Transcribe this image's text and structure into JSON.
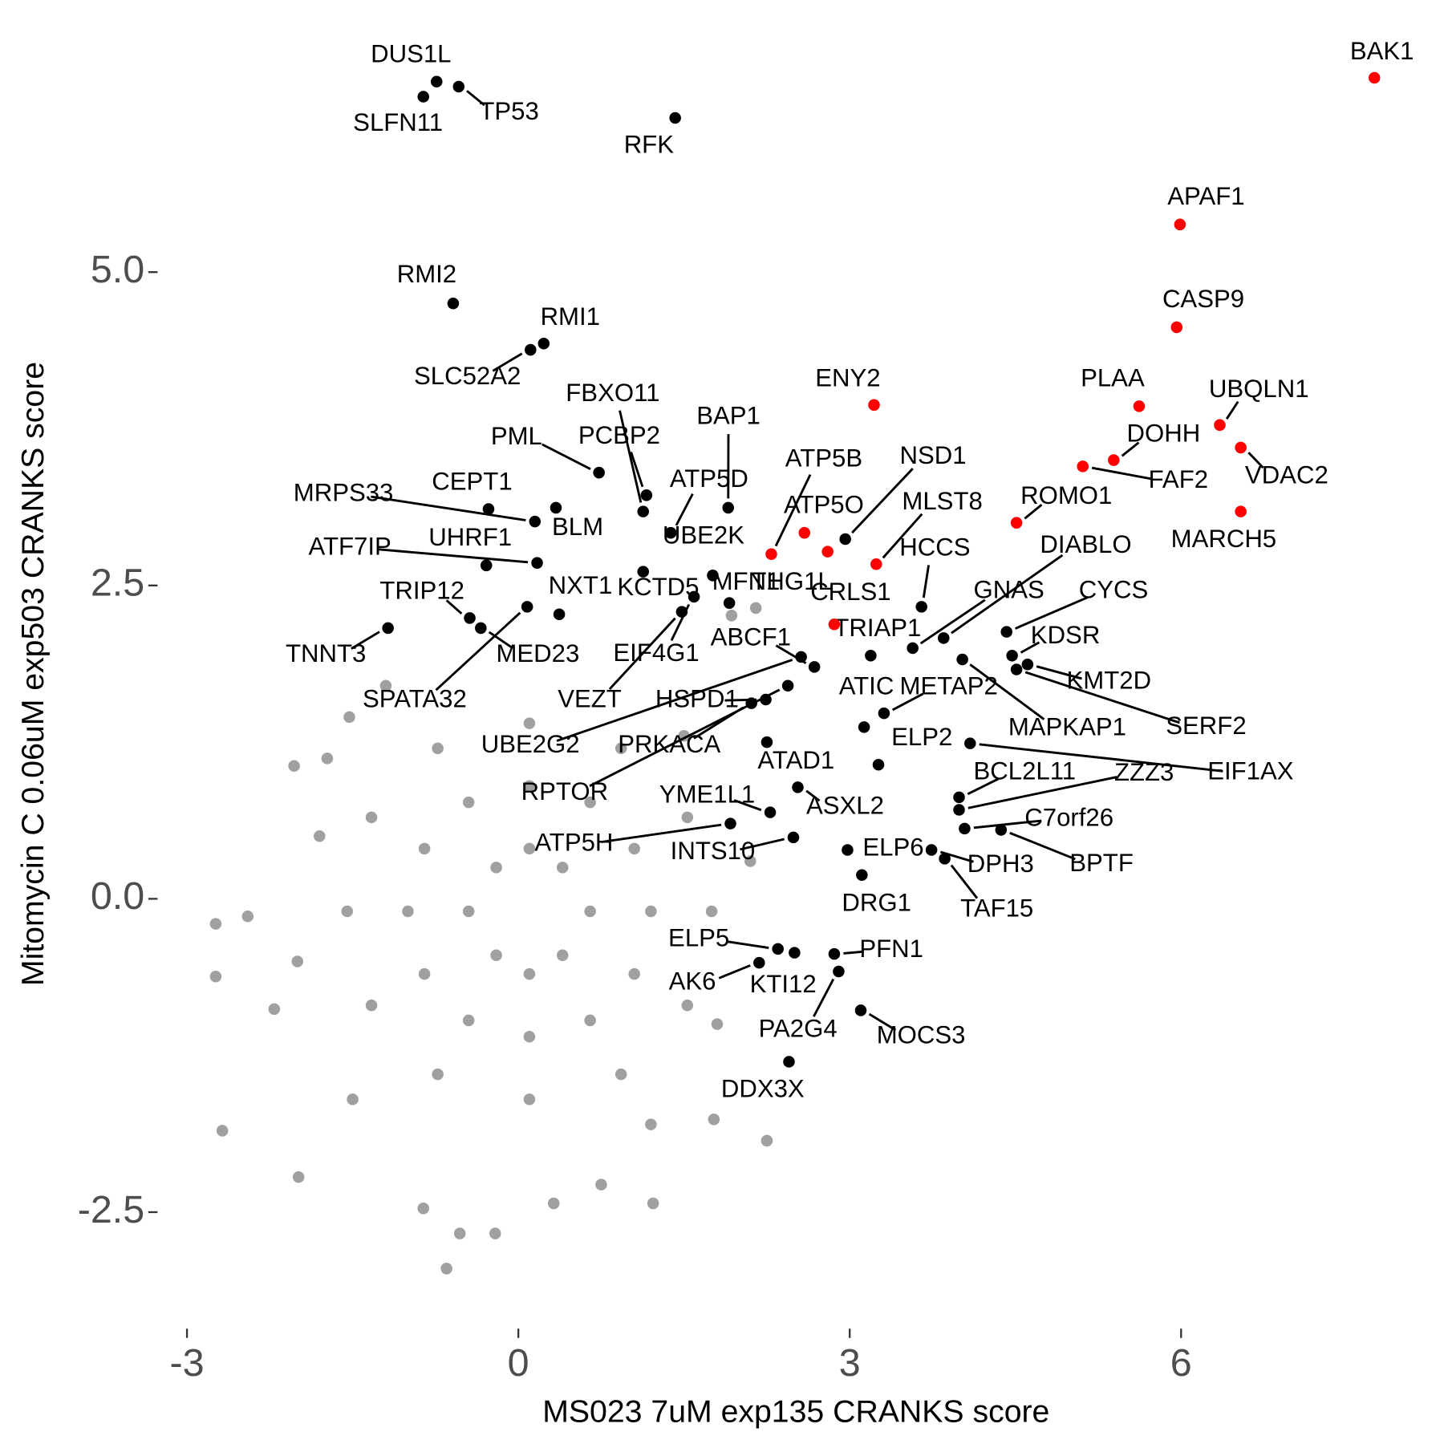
{
  "chart_data": {
    "type": "scatter",
    "x_label": "MS023 7uM exp135 CRANKS score",
    "y_label": "Mitomycin C 0.06uM exp503 CRANKS score",
    "xlim": [
      -3.3,
      8.2
    ],
    "ylim": [
      -3.4,
      6.9
    ],
    "xticks": [
      -3,
      0,
      3,
      6
    ],
    "yticks": [
      {
        "value": -2.5,
        "label": "-2.5"
      },
      {
        "value": 0,
        "label": "0.0"
      },
      {
        "value": 2.5,
        "label": "2.5"
      },
      {
        "value": 5,
        "label": "5.0"
      }
    ],
    "series": [
      {
        "color": "#a0a0a0",
        "x": [
          1.75,
          1.53,
          0.93,
          0.1,
          -0.73,
          -1.33,
          -1.55,
          -1.33,
          -0.73,
          0.1,
          0.93,
          1.53,
          1.2,
          1.05,
          0.65,
          0.1,
          -0.45,
          -0.85,
          -1.0,
          -0.85,
          -0.45,
          0.1,
          0.65,
          1.05,
          0.65,
          0.4,
          0.1,
          -0.2,
          -0.45,
          -0.2,
          0.1,
          0.4,
          2.1,
          1.8,
          -1.8,
          -2.0,
          -1.5,
          1.5,
          -1.2,
          1.2,
          -2.74,
          -2.74,
          -2.68,
          -1.99,
          -0.65,
          -0.53,
          -0.21,
          1.22,
          2.25,
          1.77,
          2.15,
          1.93,
          -2.03,
          -1.53,
          -1.73,
          -2.21,
          -2.45,
          -0.86,
          0.32,
          0.75
        ],
        "y": [
          -0.1,
          0.65,
          1.2,
          1.4,
          1.2,
          0.65,
          -0.1,
          -0.85,
          -1.4,
          -1.6,
          -1.4,
          -0.85,
          -0.1,
          0.4,
          0.77,
          0.9,
          0.77,
          0.4,
          -0.1,
          -0.6,
          -0.97,
          -1.1,
          -0.97,
          -0.6,
          -0.1,
          0.25,
          0.4,
          0.25,
          -0.1,
          -0.45,
          -0.6,
          -0.45,
          0.3,
          -1.0,
          0.5,
          -0.5,
          -1.6,
          1.3,
          1.7,
          -1.8,
          -0.2,
          -0.62,
          -1.85,
          -2.22,
          -2.95,
          -2.67,
          -2.67,
          -2.43,
          -1.93,
          -1.76,
          2.32,
          2.26,
          1.06,
          1.45,
          1.12,
          -0.88,
          -0.14,
          -2.47,
          -2.43,
          -2.28
        ]
      },
      {
        "color": "#000000",
        "labels": [
          "DUS1L",
          "SLFN11",
          "TP53",
          "RFK",
          "RMI2",
          "RMI1",
          "SLC52A2",
          "FBXO11",
          "PML",
          "PCBP2",
          "BAP1",
          "ATP5D",
          "UBE2K",
          "CEPT1",
          "MRPS33",
          "BLM",
          "UHRF1",
          "ATF7IP",
          "TRIP12",
          "NXT1",
          "KCTD5",
          "MFN1",
          "TNNT3",
          "MED23",
          "EIF4G1",
          "SPATA32",
          "VEZT",
          "ABCF1",
          "HSPD1",
          "UBE2G2",
          "PRKACA",
          "RPTOR",
          "ATAD1",
          "YME1L1",
          "ATP5H",
          "INTS10",
          "ASXL2",
          "NSD1",
          "HCCS",
          "TRIAP1",
          "GNAS",
          "DIABLO",
          "CYCS",
          "KDSR",
          "KMT2D",
          "SERF2",
          "METAP2",
          "ATIC",
          "MAPKAP1",
          "ELP2",
          "EIF1AX",
          "BCL2L11",
          "ZZZ3",
          "C7orf26",
          "BPTF",
          "DPH3",
          "TAF15",
          "ELP6",
          "DRG1",
          "ELP5",
          "AK6",
          "KTI12",
          "PFN1",
          "PA2G4",
          "MOCS3",
          "DDX3X"
        ],
        "x": [
          -0.74,
          -0.86,
          -0.54,
          1.42,
          -0.59,
          0.23,
          0.11,
          1.13,
          0.73,
          1.16,
          1.9,
          1.38,
          1.76,
          -0.27,
          0.15,
          0.34,
          -0.29,
          0.17,
          -0.44,
          0.37,
          1.13,
          1.91,
          -1.18,
          -0.34,
          1.59,
          0.08,
          1.48,
          2.68,
          2.24,
          2.56,
          2.11,
          2.44,
          2.25,
          2.28,
          1.92,
          2.49,
          2.53,
          2.96,
          3.65,
          3.19,
          3.57,
          3.85,
          4.42,
          4.47,
          4.61,
          4.51,
          3.31,
          3.13,
          4.02,
          3.26,
          4.09,
          3.99,
          3.99,
          4.04,
          4.37,
          3.74,
          3.86,
          2.98,
          3.11,
          2.35,
          2.18,
          2.5,
          2.86,
          2.9,
          3.1,
          2.45
        ],
        "y": [
          6.52,
          6.4,
          6.48,
          6.23,
          4.75,
          4.43,
          4.38,
          3.09,
          3.4,
          3.22,
          3.12,
          2.92,
          2.58,
          3.11,
          3.01,
          3.12,
          2.66,
          2.68,
          2.24,
          2.27,
          2.61,
          2.36,
          2.16,
          2.16,
          2.41,
          2.33,
          2.29,
          1.85,
          1.59,
          1.93,
          1.56,
          1.7,
          1.25,
          0.69,
          0.6,
          0.49,
          0.89,
          2.87,
          2.33,
          1.94,
          2.0,
          2.08,
          2.13,
          1.94,
          1.87,
          1.83,
          1.48,
          1.37,
          1.91,
          1.07,
          1.24,
          0.81,
          0.71,
          0.56,
          0.55,
          0.39,
          0.32,
          0.39,
          0.19,
          -0.4,
          -0.51,
          -0.43,
          -0.44,
          -0.58,
          -0.89,
          -1.3
        ]
      },
      {
        "color": "#ff0000",
        "labels": [
          "BAK1",
          "APAF1",
          "CASP9",
          "PLAA",
          "UBQLN1",
          "DOHH",
          "VDAC2",
          "FAF2",
          "MARCH5",
          "ROMO1",
          "ENY2",
          "ATP5O",
          "ATP5B",
          "THG1L",
          "MLST8",
          "CRLS1"
        ],
        "x": [
          7.75,
          5.99,
          5.96,
          5.62,
          6.35,
          5.39,
          6.54,
          5.11,
          6.54,
          4.51,
          3.22,
          2.59,
          2.29,
          2.8,
          3.24,
          2.86
        ],
        "y": [
          6.55,
          5.38,
          4.56,
          3.93,
          3.78,
          3.5,
          3.6,
          3.45,
          3.09,
          3.0,
          3.94,
          2.92,
          2.75,
          2.77,
          2.67,
          2.19
        ]
      }
    ]
  }
}
